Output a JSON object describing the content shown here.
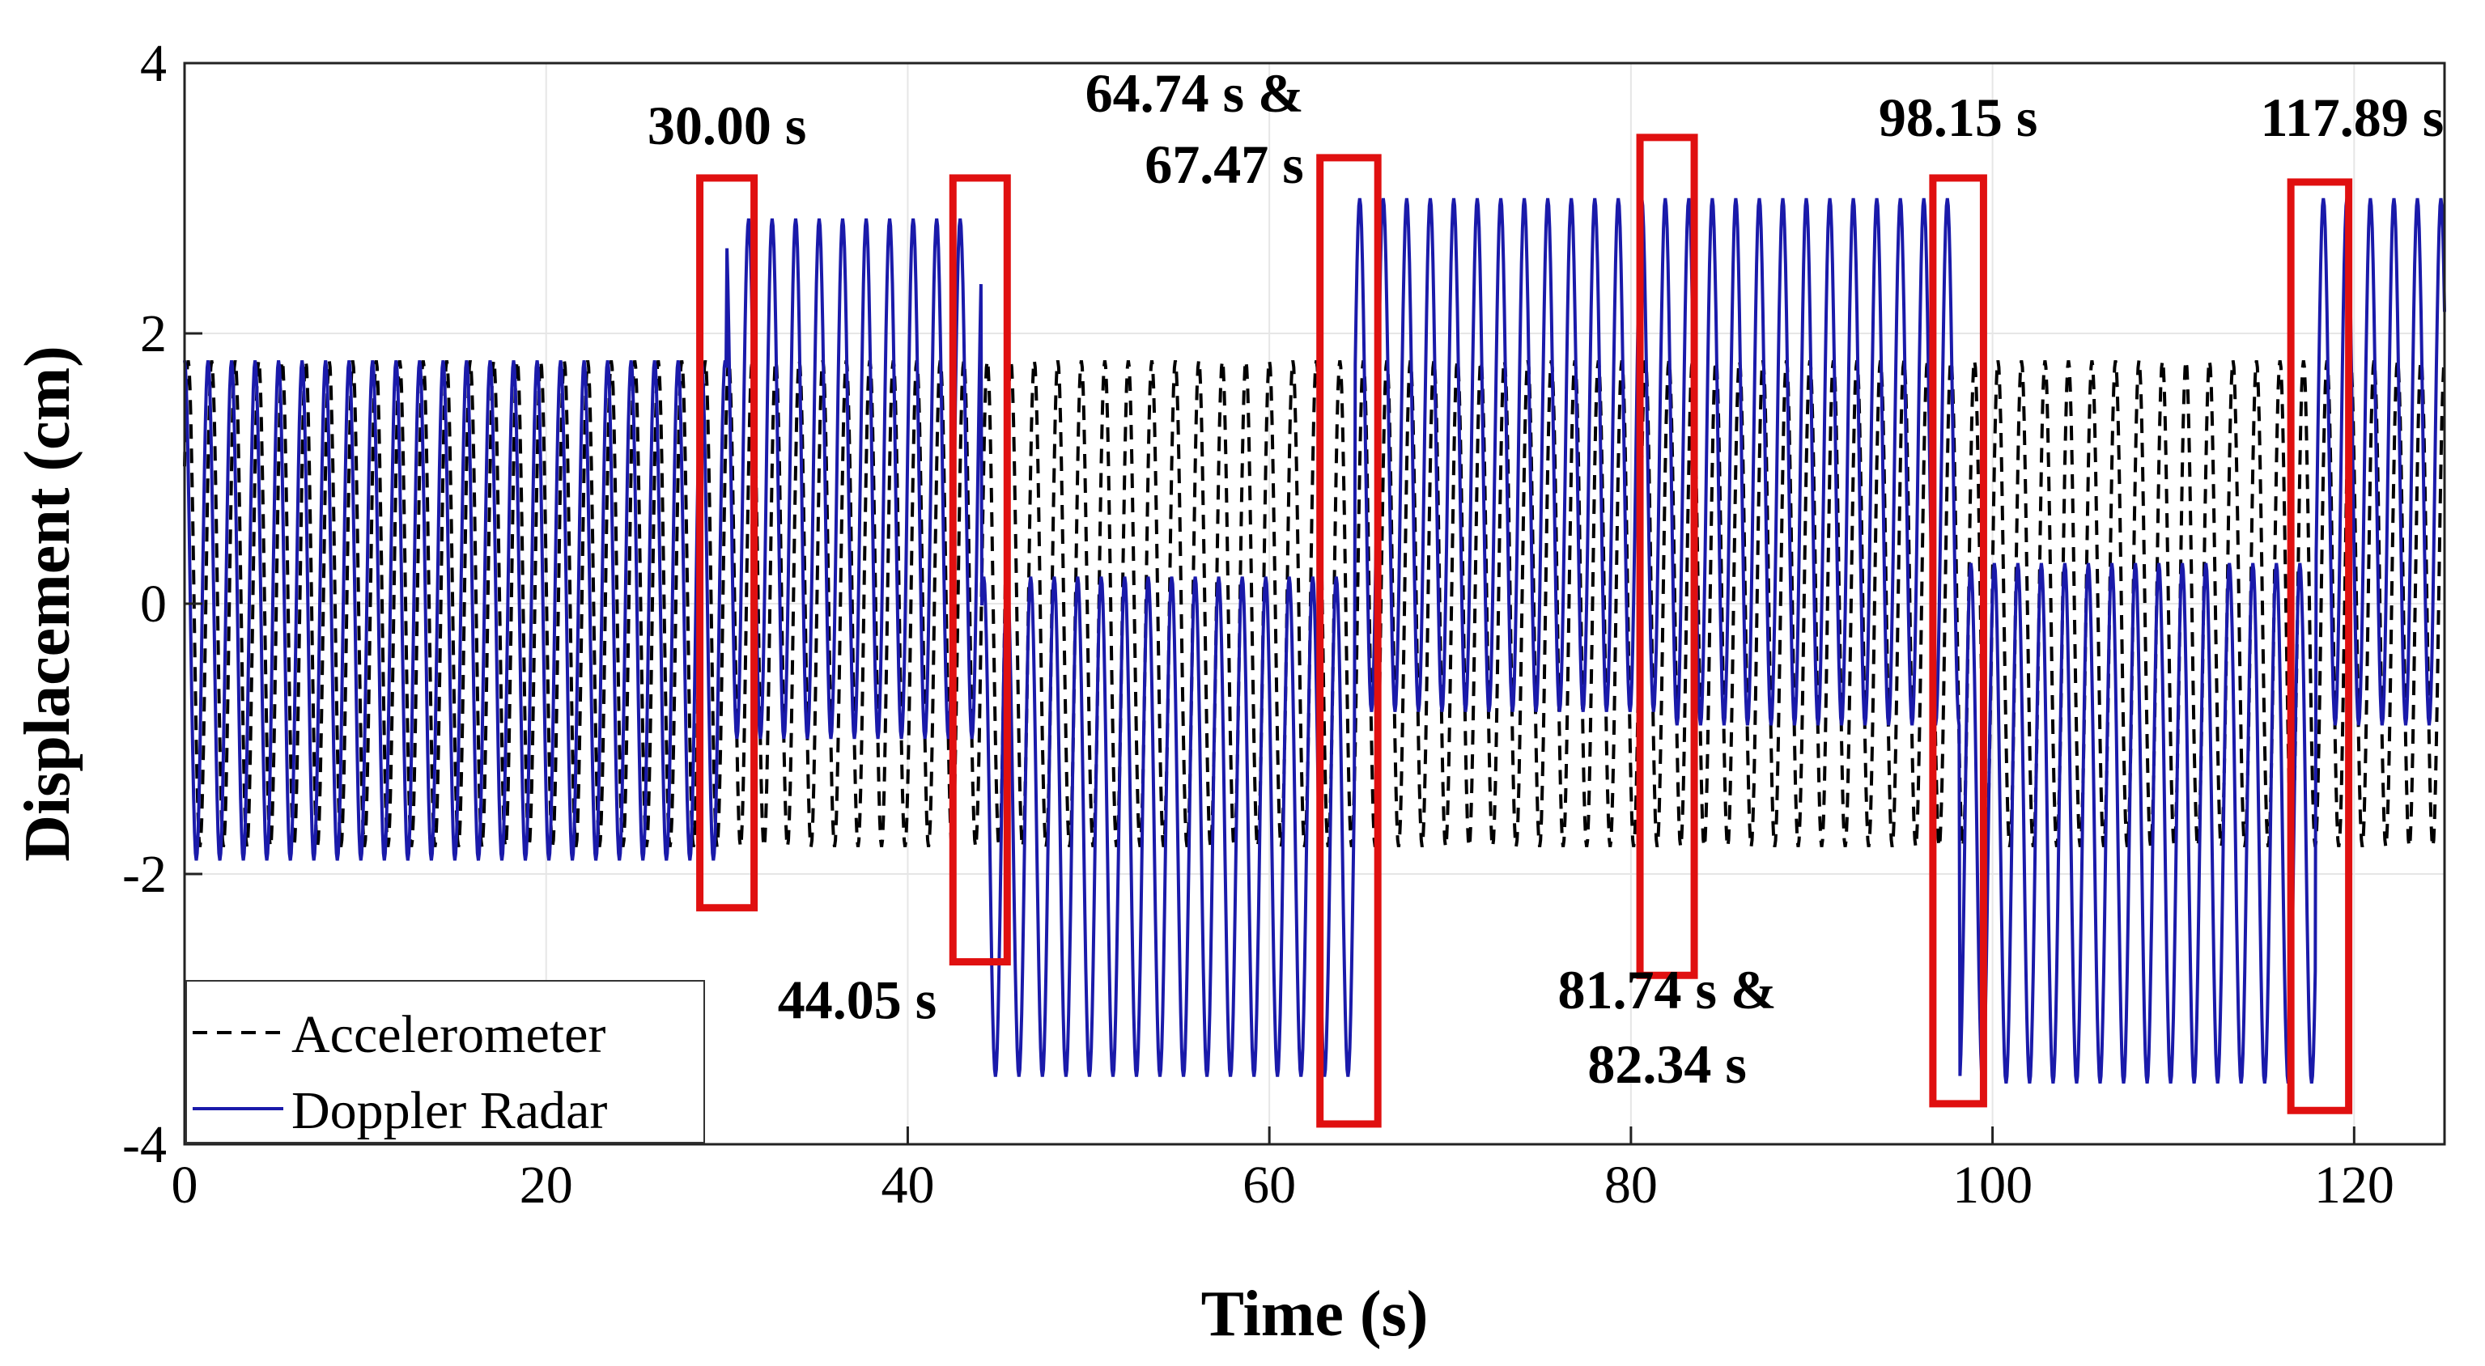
{
  "chart_data": {
    "type": "line",
    "title": "",
    "xlabel": "Time (s)",
    "ylabel": "Displacement (cm)",
    "xlim": [
      0,
      125
    ],
    "ylim": [
      -4,
      4
    ],
    "xticks": [
      0,
      20,
      40,
      60,
      80,
      100,
      120
    ],
    "xtick_labels": [
      "0",
      "20",
      "40",
      "60",
      "80",
      "100",
      "120"
    ],
    "yticks": [
      -4,
      -2,
      0,
      2,
      4
    ],
    "ytick_labels": [
      "-4",
      "-2",
      "0",
      "2",
      "4"
    ],
    "grid": true,
    "legend": {
      "position": "bottom-left",
      "entries": [
        "Accelerometer",
        "Doppler Radar"
      ]
    },
    "series": [
      {
        "name": "Accelerometer",
        "style": "dashed",
        "color": "#000000",
        "description_points": {
          "t": [
            0,
            30,
            44,
            65,
            82,
            98,
            118,
            125
          ],
          "upper": [
            1.8,
            1.8,
            1.8,
            1.8,
            1.8,
            1.8,
            1.8,
            1.8
          ],
          "lower": [
            -1.8,
            -1.8,
            -1.8,
            -1.8,
            -1.8,
            -1.8,
            -1.8,
            -1.8
          ]
        },
        "cycle_period_s": 1.3
      },
      {
        "name": "Doppler Radar",
        "style": "solid",
        "color": "#1a1aaa",
        "segments": [
          {
            "t_start": 0,
            "t_end": 30.0,
            "upper": 1.8,
            "lower": -1.9
          },
          {
            "t_start": 30.0,
            "t_end": 44.05,
            "upper": 2.85,
            "lower": -1.0
          },
          {
            "t_start": 44.05,
            "t_end": 64.74,
            "upper": 0.2,
            "lower": -3.5
          },
          {
            "t_start": 64.74,
            "t_end": 81.74,
            "upper": 3.0,
            "lower": -0.8
          },
          {
            "t_start": 81.74,
            "t_end": 98.15,
            "upper": 3.0,
            "lower": -0.9
          },
          {
            "t_start": 98.15,
            "t_end": 117.89,
            "upper": 0.3,
            "lower": -3.55
          },
          {
            "t_start": 117.89,
            "t_end": 125,
            "upper": 3.0,
            "lower": -0.9
          }
        ],
        "cycle_period_s": 1.3
      }
    ],
    "annotations": [
      {
        "text": "30.00 s",
        "t": 30.0,
        "box_t": [
          28.5,
          31.5
        ],
        "box_y": [
          -2.25,
          3.15
        ],
        "label_pos": "above"
      },
      {
        "text": "44.05 s",
        "t": 44.05,
        "box_t": [
          42.5,
          45.5
        ],
        "box_y": [
          -2.65,
          3.15
        ],
        "label_pos": "left-bottom"
      },
      {
        "text": "64.74 s &",
        "text2": "67.47 s",
        "t": 64.74,
        "box_t": [
          62.8,
          66.0
        ],
        "box_y": [
          -3.85,
          3.3
        ],
        "label_pos": "left-top"
      },
      {
        "text": "81.74 s &",
        "text2": "82.34 s",
        "t": 81.74,
        "box_t": [
          80.5,
          83.5
        ],
        "box_y": [
          -2.75,
          3.45
        ],
        "label_pos": "below"
      },
      {
        "text": "98.15 s",
        "t": 98.15,
        "box_t": [
          96.7,
          99.5
        ],
        "box_y": [
          -3.7,
          3.15
        ],
        "label_pos": "above"
      },
      {
        "text": "117.89 s",
        "t": 117.89,
        "box_t": [
          116.5,
          119.7
        ],
        "box_y": [
          -3.75,
          3.12
        ],
        "label_pos": "above"
      }
    ],
    "highlight_color": "#e01010"
  }
}
